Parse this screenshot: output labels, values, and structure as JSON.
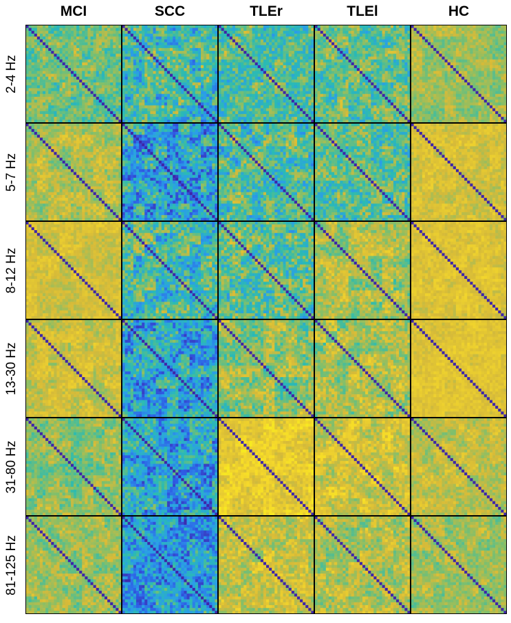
{
  "chart_data": {
    "type": "heatmap",
    "layout": "grid of connectivity matrices",
    "columns": [
      "MCI",
      "SCC",
      "TLEr",
      "TLEl",
      "HC"
    ],
    "rows": [
      "2-4 Hz",
      "5-7 Hz",
      "8-12 Hz",
      "13-30 Hz",
      "31-80 Hz",
      "81-125 Hz"
    ],
    "matrix_size": 34,
    "diagonal": "dark blue (self-connection)",
    "colormap": [
      "#3e26a8",
      "#2e5de6",
      "#2a9ee8",
      "#2bbbb2",
      "#81bf6b",
      "#d6ba39",
      "#f5d82a",
      "#f9f818"
    ],
    "mean_level": [
      [
        0.55,
        0.45,
        0.5,
        0.52,
        0.62
      ],
      [
        0.65,
        0.35,
        0.48,
        0.5,
        0.72
      ],
      [
        0.72,
        0.45,
        0.52,
        0.62,
        0.74
      ],
      [
        0.7,
        0.35,
        0.6,
        0.64,
        0.76
      ],
      [
        0.6,
        0.32,
        0.8,
        0.72,
        0.68
      ],
      [
        0.62,
        0.3,
        0.68,
        0.64,
        0.62
      ]
    ],
    "spread": [
      [
        0.18,
        0.26,
        0.22,
        0.22,
        0.12
      ],
      [
        0.14,
        0.28,
        0.24,
        0.22,
        0.1
      ],
      [
        0.1,
        0.26,
        0.24,
        0.18,
        0.09
      ],
      [
        0.12,
        0.26,
        0.2,
        0.18,
        0.08
      ],
      [
        0.15,
        0.26,
        0.13,
        0.16,
        0.12
      ],
      [
        0.15,
        0.26,
        0.16,
        0.17,
        0.14
      ]
    ]
  }
}
